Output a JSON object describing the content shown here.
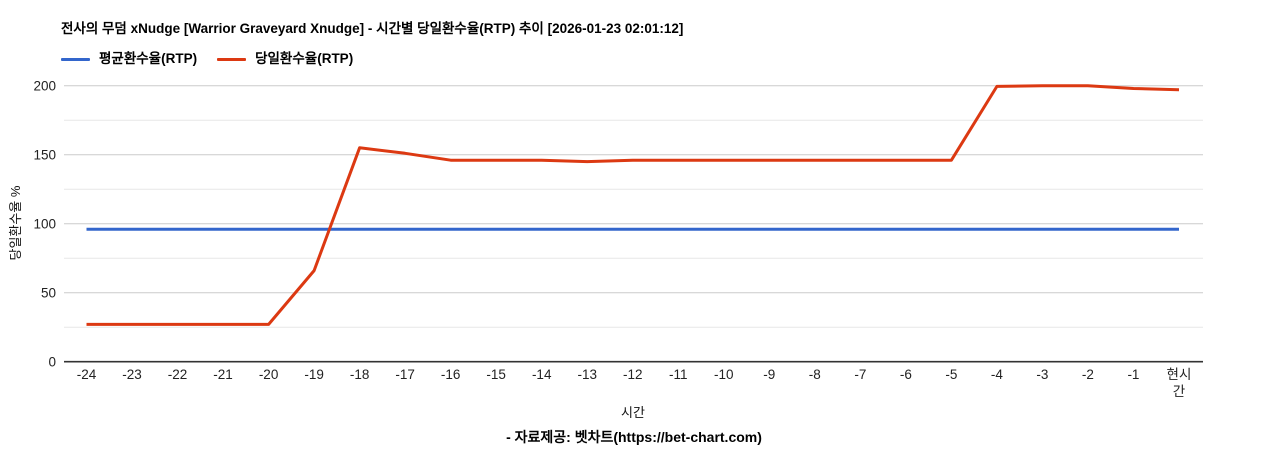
{
  "chart_data": {
    "type": "line",
    "title": "전사의 무덤 xNudge [Warrior Graveyard Xnudge] - 시간별 당일환수율(RTP) 추이 [2026-01-23 02:01:12]",
    "xlabel": "시간",
    "ylabel": "당일환수율 %",
    "ylim": [
      0,
      200
    ],
    "yticks": [
      0,
      50,
      100,
      150,
      200
    ],
    "minor_yticks": [
      25,
      75,
      125,
      175
    ],
    "grid": true,
    "legend_position": "top-left",
    "categories": [
      "-24",
      "-23",
      "-22",
      "-21",
      "-20",
      "-19",
      "-18",
      "-17",
      "-16",
      "-15",
      "-14",
      "-13",
      "-12",
      "-11",
      "-10",
      "-9",
      "-8",
      "-7",
      "-6",
      "-5",
      "-4",
      "-3",
      "-2",
      "-1",
      "현시간"
    ],
    "series": [
      {
        "name": "평균환수율(RTP)",
        "color": "#3366cc",
        "values": [
          96,
          96,
          96,
          96,
          96,
          96,
          96,
          96,
          96,
          96,
          96,
          96,
          96,
          96,
          96,
          96,
          96,
          96,
          96,
          96,
          96,
          96,
          96,
          96,
          96
        ]
      },
      {
        "name": "당일환수율(RTP)",
        "color": "#dc3912",
        "values": [
          27,
          27,
          27,
          27,
          27,
          66,
          155,
          151,
          146,
          146,
          146,
          145,
          146,
          146,
          146,
          146,
          146,
          146,
          146,
          146,
          199.5,
          200,
          200,
          198,
          197
        ]
      }
    ]
  },
  "footer": "- 자료제공: 벳차트(https://bet-chart.com)",
  "colors": {
    "major_grid": "#cccccc",
    "minor_grid": "#e7e7e7",
    "baseline": "#333333"
  }
}
